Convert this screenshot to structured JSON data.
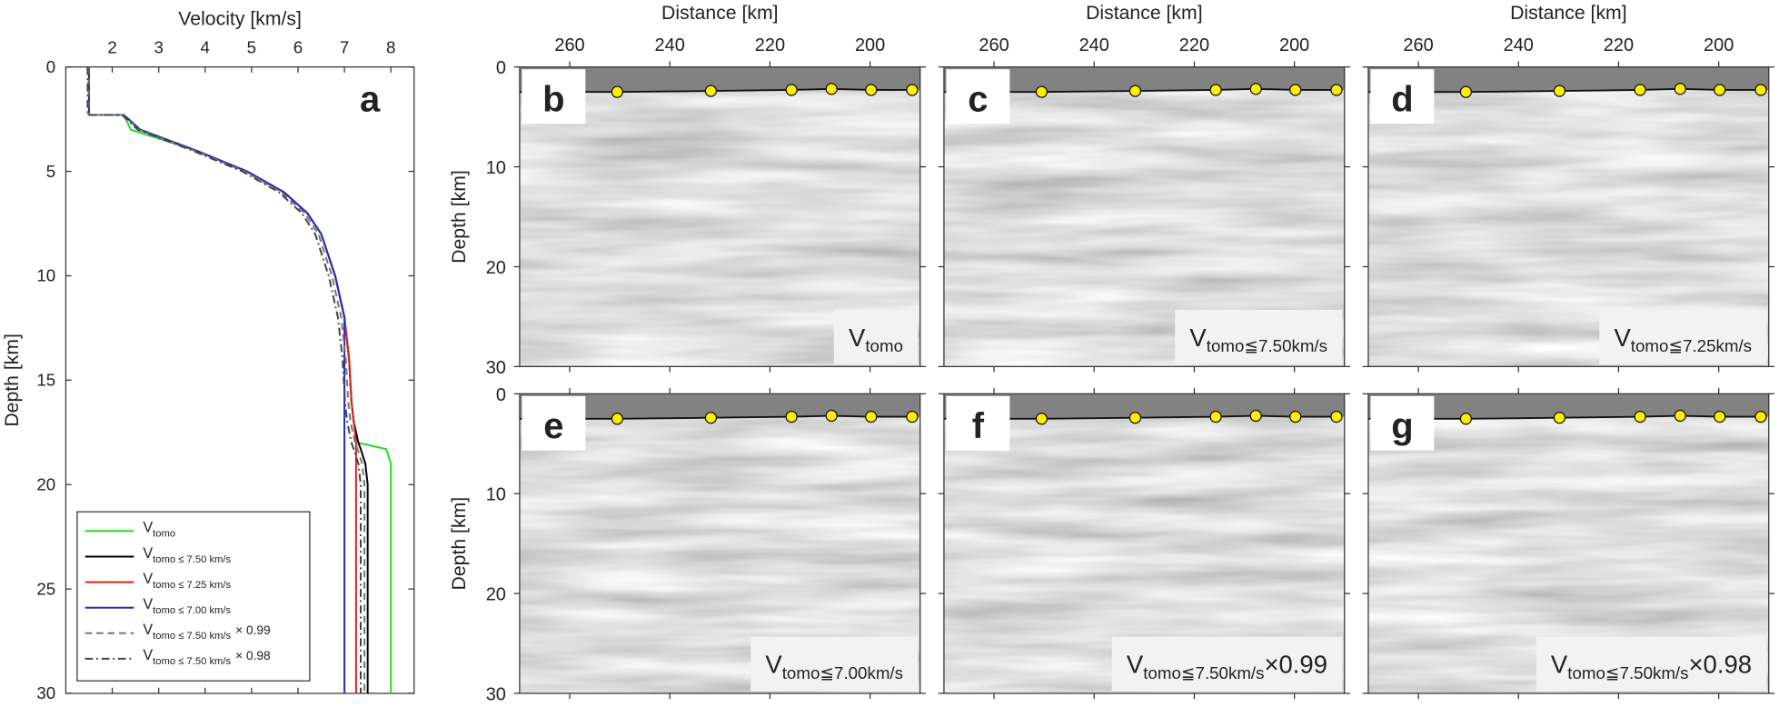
{
  "chart_data": [
    {
      "type": "line",
      "panel": "a",
      "xlabel": "Velocity [km/s]",
      "ylabel": "Depth [km]",
      "xlim": [
        1,
        8.5
      ],
      "xticks": [
        2,
        3,
        4,
        5,
        6,
        7,
        8
      ],
      "ylim": [
        0,
        30
      ],
      "yticks": [
        0,
        5,
        10,
        15,
        20,
        25,
        30
      ],
      "y": [
        0,
        2.3,
        2.3,
        3,
        4,
        5,
        6,
        7,
        8,
        10,
        12,
        14,
        16,
        17,
        18,
        18.3,
        19,
        20,
        25,
        30
      ],
      "series": [
        {
          "name": "V",
          "sub": "tomo",
          "color": "#22dd22",
          "linestyle": "solid",
          "values": [
            1.5,
            1.5,
            2.25,
            2.4,
            3.8,
            4.9,
            5.7,
            6.2,
            6.5,
            6.8,
            7.0,
            7.1,
            7.15,
            7.2,
            7.3,
            7.9,
            8.0,
            8.0,
            8.0,
            8.0
          ]
        },
        {
          "name": "V",
          "sub": "tomo ≤ 7.50 km/s",
          "color": "#000000",
          "linestyle": "solid",
          "values": [
            1.5,
            1.5,
            2.25,
            2.6,
            3.8,
            4.9,
            5.7,
            6.2,
            6.5,
            6.8,
            7.0,
            7.1,
            7.15,
            7.2,
            7.3,
            7.35,
            7.45,
            7.5,
            7.5,
            7.5
          ]
        },
        {
          "name": "V",
          "sub": "tomo ≤ 7.25 km/s",
          "color": "#dd2222",
          "linestyle": "solid",
          "values": [
            1.5,
            1.5,
            2.25,
            2.6,
            3.8,
            4.9,
            5.7,
            6.2,
            6.5,
            6.8,
            7.0,
            7.1,
            7.15,
            7.2,
            7.25,
            7.25,
            7.25,
            7.25,
            7.25,
            7.25
          ]
        },
        {
          "name": "V",
          "sub": "tomo ≤ 7.00 km/s",
          "color": "#1f2fc0",
          "linestyle": "solid",
          "values": [
            1.5,
            1.5,
            2.25,
            2.6,
            3.8,
            4.9,
            5.7,
            6.2,
            6.5,
            6.8,
            7.0,
            7.0,
            7.0,
            7.0,
            7.0,
            7.0,
            7.0,
            7.0,
            7.0,
            7.0
          ]
        },
        {
          "name": "V",
          "sub": "tomo ≤ 7.50 km/s",
          "suffix": "× 0.99",
          "color": "#777777",
          "linestyle": "dashed",
          "values": [
            1.49,
            1.49,
            2.23,
            2.57,
            3.76,
            4.85,
            5.64,
            6.14,
            6.44,
            6.73,
            6.93,
            7.03,
            7.08,
            7.13,
            7.23,
            7.28,
            7.38,
            7.43,
            7.43,
            7.43
          ]
        },
        {
          "name": "V",
          "sub": "tomo ≤ 7.50 km/s",
          "suffix": "× 0.98",
          "color": "#444444",
          "linestyle": "dashdot",
          "values": [
            1.47,
            1.47,
            2.21,
            2.55,
            3.72,
            4.8,
            5.59,
            6.08,
            6.37,
            6.66,
            6.86,
            6.96,
            7.01,
            7.06,
            7.15,
            7.2,
            7.3,
            7.35,
            7.35,
            7.35
          ]
        }
      ]
    },
    {
      "type": "image",
      "panel": "b",
      "label": {
        "main": "V",
        "sub": "tomo"
      },
      "xlabel": "Distance [km]",
      "ylabel": "Depth [km]",
      "xlim": [
        270,
        190
      ],
      "xticks": [
        260,
        240,
        220,
        200
      ],
      "ylim": [
        0,
        30
      ],
      "yticks": [
        0,
        10,
        20,
        30
      ],
      "show_xticklabels": true,
      "show_yticklabels": true,
      "stations": {
        "distance": [
          250.5,
          231.8,
          215.7,
          207.7,
          199.8,
          191.6
        ],
        "depth": [
          2.5,
          2.4,
          2.3,
          2.2,
          2.3,
          2.3
        ],
        "color": "#ffee00"
      }
    },
    {
      "type": "image",
      "panel": "c",
      "label": {
        "main": "V",
        "sub": "tomo≦7.50km/s"
      },
      "xlabel": "Distance [km]",
      "xlim": [
        270,
        190
      ],
      "xticks": [
        260,
        240,
        220,
        200
      ],
      "ylim": [
        0,
        30
      ],
      "yticks": [
        0,
        10,
        20,
        30
      ],
      "show_xticklabels": true,
      "show_yticklabels": false,
      "stations": {
        "distance": [
          250.5,
          231.8,
          215.7,
          207.7,
          199.8,
          191.6
        ],
        "depth": [
          2.5,
          2.4,
          2.3,
          2.2,
          2.3,
          2.3
        ],
        "color": "#ffee00"
      }
    },
    {
      "type": "image",
      "panel": "d",
      "label": {
        "main": "V",
        "sub": "tomo≦7.25km/s"
      },
      "xlabel": "Distance [km]",
      "xlim": [
        270,
        190
      ],
      "xticks": [
        260,
        240,
        220,
        200
      ],
      "ylim": [
        0,
        30
      ],
      "yticks": [
        0,
        10,
        20,
        30
      ],
      "show_xticklabels": true,
      "show_yticklabels": false,
      "stations": {
        "distance": [
          250.5,
          231.8,
          215.7,
          207.7,
          199.8,
          191.6
        ],
        "depth": [
          2.5,
          2.4,
          2.3,
          2.2,
          2.3,
          2.3
        ],
        "color": "#ffee00"
      }
    },
    {
      "type": "image",
      "panel": "e",
      "label": {
        "main": "V",
        "sub": "tomo≦7.00km/s"
      },
      "ylabel": "Depth [km]",
      "xlim": [
        270,
        190
      ],
      "xticks": [
        260,
        240,
        220,
        200
      ],
      "ylim": [
        0,
        30
      ],
      "yticks": [
        0,
        10,
        20,
        30
      ],
      "show_xticklabels": false,
      "show_yticklabels": true,
      "stations": {
        "distance": [
          250.5,
          231.8,
          215.7,
          207.7,
          199.8,
          191.6
        ],
        "depth": [
          2.5,
          2.4,
          2.3,
          2.2,
          2.3,
          2.3
        ],
        "color": "#ffee00"
      }
    },
    {
      "type": "image",
      "panel": "f",
      "label": {
        "main": "V",
        "sub": "tomo≦7.50km/s",
        "suffix": "×0.99"
      },
      "xlim": [
        270,
        190
      ],
      "xticks": [
        260,
        240,
        220,
        200
      ],
      "ylim": [
        0,
        30
      ],
      "yticks": [
        0,
        10,
        20,
        30
      ],
      "show_xticklabels": false,
      "show_yticklabels": false,
      "stations": {
        "distance": [
          250.5,
          231.8,
          215.7,
          207.7,
          199.8,
          191.6
        ],
        "depth": [
          2.5,
          2.4,
          2.3,
          2.2,
          2.3,
          2.3
        ],
        "color": "#ffee00"
      }
    },
    {
      "type": "image",
      "panel": "g",
      "label": {
        "main": "V",
        "sub": "tomo≦7.50km/s",
        "suffix": "×0.98"
      },
      "xlim": [
        270,
        190
      ],
      "xticks": [
        260,
        240,
        220,
        200
      ],
      "ylim": [
        0,
        30
      ],
      "yticks": [
        0,
        10,
        20,
        30
      ],
      "show_xticklabels": false,
      "show_yticklabels": false,
      "stations": {
        "distance": [
          250.5,
          231.8,
          215.7,
          207.7,
          199.8,
          191.6
        ],
        "depth": [
          2.5,
          2.4,
          2.3,
          2.2,
          2.3,
          2.3
        ],
        "color": "#ffee00"
      }
    }
  ]
}
